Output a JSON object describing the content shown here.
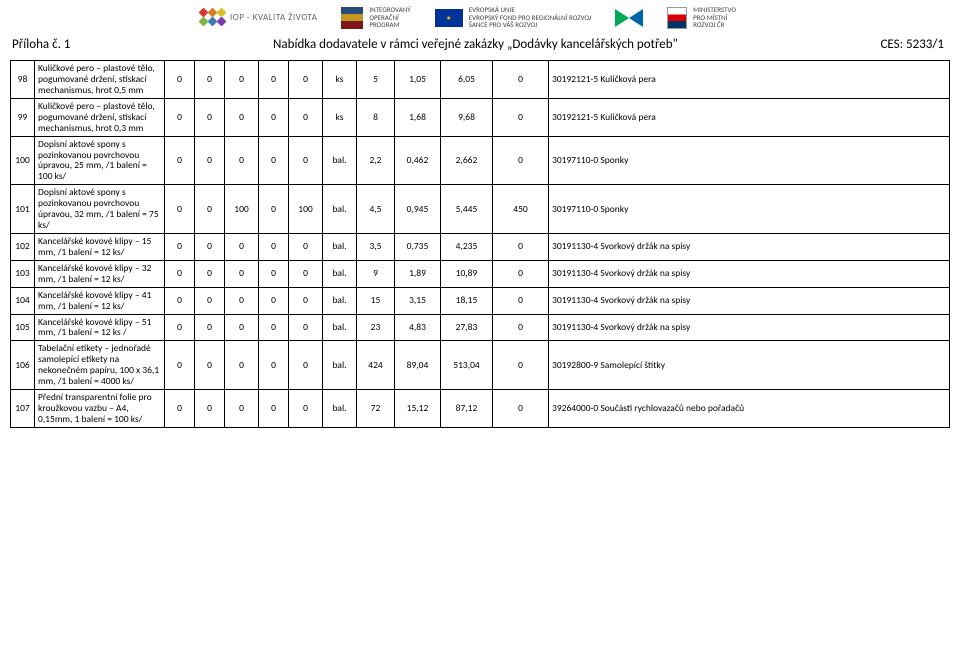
{
  "header": {
    "iop_text": "IOP - KVALITA ŽIVOTA",
    "integrated_line1": "INTEGROVANÝ",
    "integrated_line2": "OPERAČNÍ",
    "integrated_line3": "PROGRAM",
    "eu_line1": "EVROPSKÁ UNIE",
    "eu_line2": "EVROPSKÝ FOND PRO REGIONÁLNÍ ROZVOJ",
    "eu_line3": "ŠANCE PRO VÁŠ ROZVOJ",
    "ministry_line1": "MINISTERSTVO",
    "ministry_line2": "PRO MÍSTNÍ",
    "ministry_line3": "ROZVOJ ČR",
    "hex_colors": [
      "#d93838",
      "#d97c1e",
      "#d6c21e",
      "#7fb53b",
      "#3b7fb5",
      "#7a3bb5"
    ]
  },
  "title": {
    "left": "Příloha č. 1",
    "center": "Nabídka dodavatele v rámci veřejné zakázky „Dodávky kancelářských potřeb\"",
    "right": "CES: 5233/1"
  },
  "rows": [
    {
      "idx": "98",
      "desc": "Kuličkové pero – plastové tělo, pogumované držení, stiskací mechanismus, hrot 0,5 mm",
      "c1": "0",
      "c2": "0",
      "c3": "0",
      "c4": "0",
      "c5": "0",
      "unit": "ks",
      "qty": "5",
      "price": "1,05",
      "total": "6,05",
      "extra": "0",
      "note": "30192121-5 Kuličková pera"
    },
    {
      "idx": "99",
      "desc": "Kuličkové pero – plastové tělo, pogumované držení, stiskací mechanismus, hrot 0,3 mm",
      "c1": "0",
      "c2": "0",
      "c3": "0",
      "c4": "0",
      "c5": "0",
      "unit": "ks",
      "qty": "8",
      "price": "1,68",
      "total": "9,68",
      "extra": "0",
      "note": "30192121-5 Kuličková pera"
    },
    {
      "idx": "100",
      "desc": "Dopisní aktové spony s pozinkovanou povrchovou úpravou, 25 mm, /1 balení = 100 ks/",
      "c1": "0",
      "c2": "0",
      "c3": "0",
      "c4": "0",
      "c5": "0",
      "unit": "bal.",
      "qty": "2,2",
      "price": "0,462",
      "total": "2,662",
      "extra": "0",
      "note": "30197110-0 Sponky"
    },
    {
      "idx": "101",
      "desc": "Dopisní aktové spony s pozinkovanou povrchovou úpravou, 32 mm, /1 balení = 75 ks/",
      "c1": "0",
      "c2": "0",
      "c3": "100",
      "c4": "0",
      "c5": "100",
      "unit": "bal.",
      "qty": "4,5",
      "price": "0,945",
      "total": "5,445",
      "extra": "450",
      "note": "30197110-0 Sponky"
    },
    {
      "idx": "102",
      "desc": "Kancelářské kovové klipy – 15 mm, /1 balení = 12 ks/",
      "c1": "0",
      "c2": "0",
      "c3": "0",
      "c4": "0",
      "c5": "0",
      "unit": "bal.",
      "qty": "3,5",
      "price": "0,735",
      "total": "4,235",
      "extra": "0",
      "note": "30191130-4 Svorkový držák na spisy"
    },
    {
      "idx": "103",
      "desc": "Kancelářské kovové klipy – 32 mm, /1 balení = 12 ks/",
      "c1": "0",
      "c2": "0",
      "c3": "0",
      "c4": "0",
      "c5": "0",
      "unit": "bal.",
      "qty": "9",
      "price": "1,89",
      "total": "10,89",
      "extra": "0",
      "note": "30191130-4 Svorkový držák na spisy"
    },
    {
      "idx": "104",
      "desc": "Kancelářské kovové klipy – 41 mm, /1 balení = 12 ks/",
      "c1": "0",
      "c2": "0",
      "c3": "0",
      "c4": "0",
      "c5": "0",
      "unit": "bal.",
      "qty": "15",
      "price": "3,15",
      "total": "18,15",
      "extra": "0",
      "note": "30191130-4 Svorkový držák na spisy"
    },
    {
      "idx": "105",
      "desc": "Kancelářské kovové klipy – 51 mm, /1 balení = 12 ks /",
      "c1": "0",
      "c2": "0",
      "c3": "0",
      "c4": "0",
      "c5": "0",
      "unit": "bal.",
      "qty": "23",
      "price": "4,83",
      "total": "27,83",
      "extra": "0",
      "note": "30191130-4 Svorkový držák na spisy"
    },
    {
      "idx": "106",
      "desc": "Tabelační etikety – jednořadé samolepící etikety na nekonečném papíru, 100 x 36,1 mm, /1 balení = 4000 ks/",
      "c1": "0",
      "c2": "0",
      "c3": "0",
      "c4": "0",
      "c5": "0",
      "unit": "bal.",
      "qty": "424",
      "price": "89,04",
      "total": "513,04",
      "extra": "0",
      "note": "30192800-9 Samolepící štítky"
    },
    {
      "idx": "107",
      "desc": "Přední transparentní folie pro kroužkovou vazbu – A4, 0,15mm, 1 balení = 100 ks/",
      "c1": "0",
      "c2": "0",
      "c3": "0",
      "c4": "0",
      "c5": "0",
      "unit": "bal.",
      "qty": "72",
      "price": "15,12",
      "total": "87,12",
      "extra": "0",
      "note": "39264000-0 Součásti rychlovazačů nebo pořadačů"
    }
  ]
}
